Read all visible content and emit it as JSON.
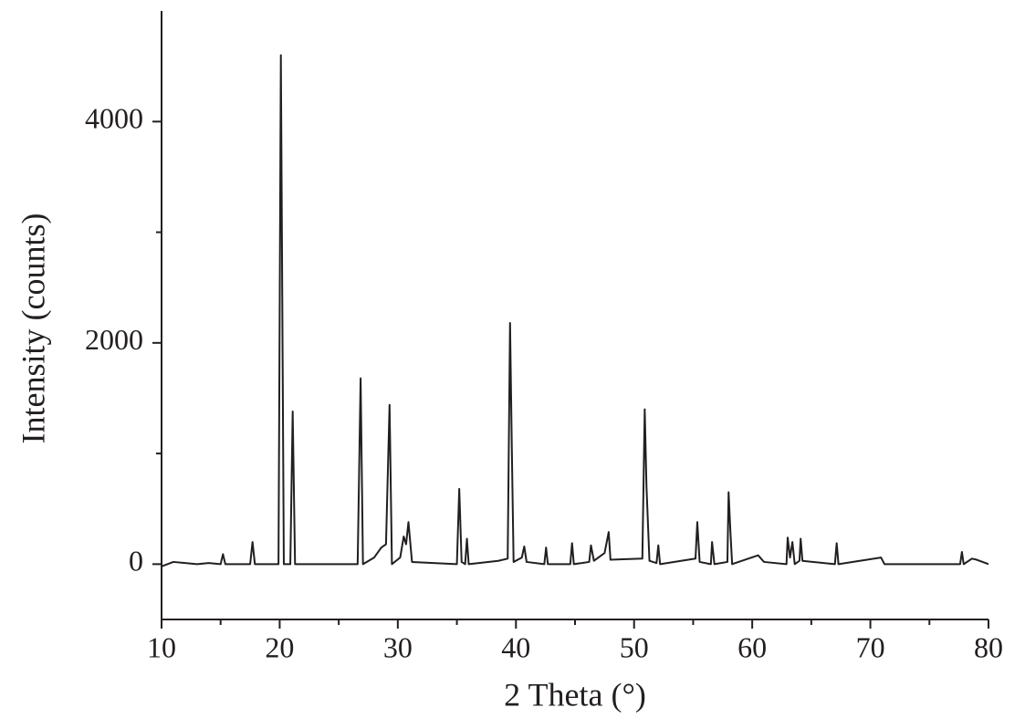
{
  "chart_data": {
    "type": "line",
    "xlabel": "2 Theta (°)",
    "ylabel": "Intensity (counts)",
    "xlim": [
      10,
      80
    ],
    "xticks": [
      10,
      20,
      30,
      40,
      50,
      60,
      70,
      80
    ],
    "xminorticks": [
      15,
      25,
      35,
      45,
      55,
      65,
      75
    ],
    "ylim": [
      -500,
      5000
    ],
    "yticks": [
      0,
      2000,
      4000
    ],
    "yminorticks": [
      1000,
      3000
    ],
    "color": "#231f20",
    "x": [
      10,
      11,
      12,
      13,
      14,
      15,
      15.2,
      15.4,
      17.5,
      17.7,
      17.9,
      19.9,
      20.1,
      20.35,
      20.9,
      21.1,
      21.3,
      26.6,
      26.85,
      27.05,
      28,
      28.6,
      29,
      29.3,
      29.5,
      30.2,
      30.5,
      30.7,
      30.9,
      31.2,
      35,
      35.2,
      35.4,
      35.7,
      35.85,
      36,
      38.5,
      39.3,
      39.5,
      39.65,
      39.8,
      40.5,
      40.7,
      40.9,
      42.4,
      42.55,
      42.7,
      44.6,
      44.75,
      44.9,
      46.2,
      46.35,
      46.6,
      47.5,
      47.85,
      48,
      50.7,
      50.9,
      51.05,
      51.3,
      51.9,
      52.05,
      52.2,
      55.2,
      55.35,
      55.55,
      56.5,
      56.6,
      56.8,
      57.9,
      58,
      58.15,
      58.3,
      60.5,
      61,
      62.9,
      63,
      63.2,
      63.4,
      63.6,
      64,
      64.1,
      64.25,
      67,
      67.15,
      67.3,
      70.9,
      71.2,
      75,
      77.6,
      77.75,
      77.9,
      78.6,
      79,
      80
    ],
    "values": [
      -20,
      20,
      10,
      0,
      10,
      0,
      90,
      0,
      0,
      200,
      0,
      0,
      4600,
      0,
      0,
      1380,
      0,
      0,
      1680,
      0,
      60,
      150,
      180,
      1440,
      0,
      60,
      250,
      180,
      380,
      20,
      0,
      680,
      20,
      0,
      230,
      0,
      30,
      50,
      2180,
      1050,
      20,
      60,
      160,
      20,
      0,
      150,
      0,
      0,
      190,
      0,
      20,
      170,
      30,
      100,
      290,
      40,
      50,
      1400,
      700,
      30,
      10,
      170,
      0,
      50,
      380,
      20,
      0,
      200,
      0,
      20,
      650,
      300,
      0,
      80,
      20,
      0,
      240,
      60,
      200,
      0,
      30,
      230,
      30,
      0,
      190,
      0,
      60,
      0,
      0,
      0,
      110,
      0,
      50,
      40,
      0
    ]
  }
}
